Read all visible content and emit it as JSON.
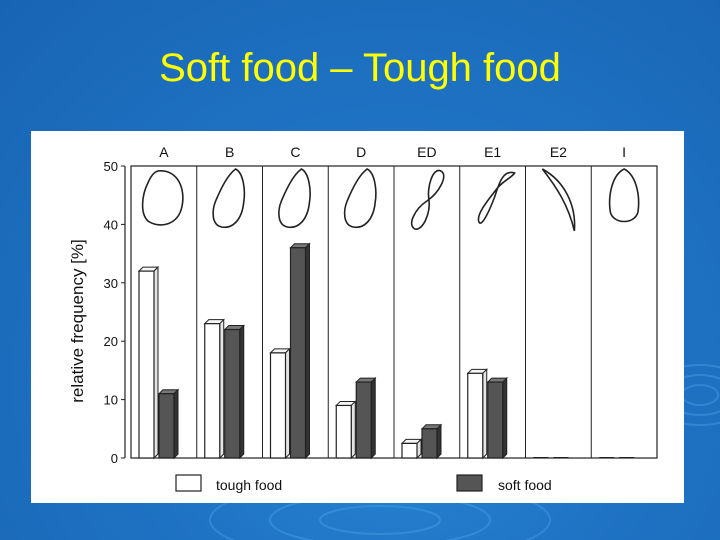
{
  "slide": {
    "title": "Soft food – Tough food"
  },
  "chart_data": {
    "type": "bar",
    "categories": [
      "A",
      "B",
      "C",
      "D",
      "ED",
      "E1",
      "E2",
      "I"
    ],
    "series": [
      {
        "name": "tough food",
        "values": [
          32,
          23,
          18,
          9,
          2.5,
          14.5,
          0,
          0
        ]
      },
      {
        "name": "soft food",
        "values": [
          11,
          22,
          36,
          13,
          5,
          13,
          0,
          0
        ]
      }
    ],
    "ylabel": "relative frequency [%]",
    "yticks": [
      0,
      10,
      20,
      30,
      40,
      50
    ],
    "ylim": [
      0,
      50
    ],
    "grid": false,
    "legend_position": "bottom",
    "category_shapes": [
      "oval",
      "teardrop",
      "teardrop",
      "teardrop",
      "figure-eight",
      "figure-eight-open",
      "crescent",
      "drop"
    ],
    "colors": {
      "tough_fill": "#ffffff",
      "soft_fill": "#555555",
      "title": "#ffff00",
      "background": "#1f73c4"
    }
  }
}
